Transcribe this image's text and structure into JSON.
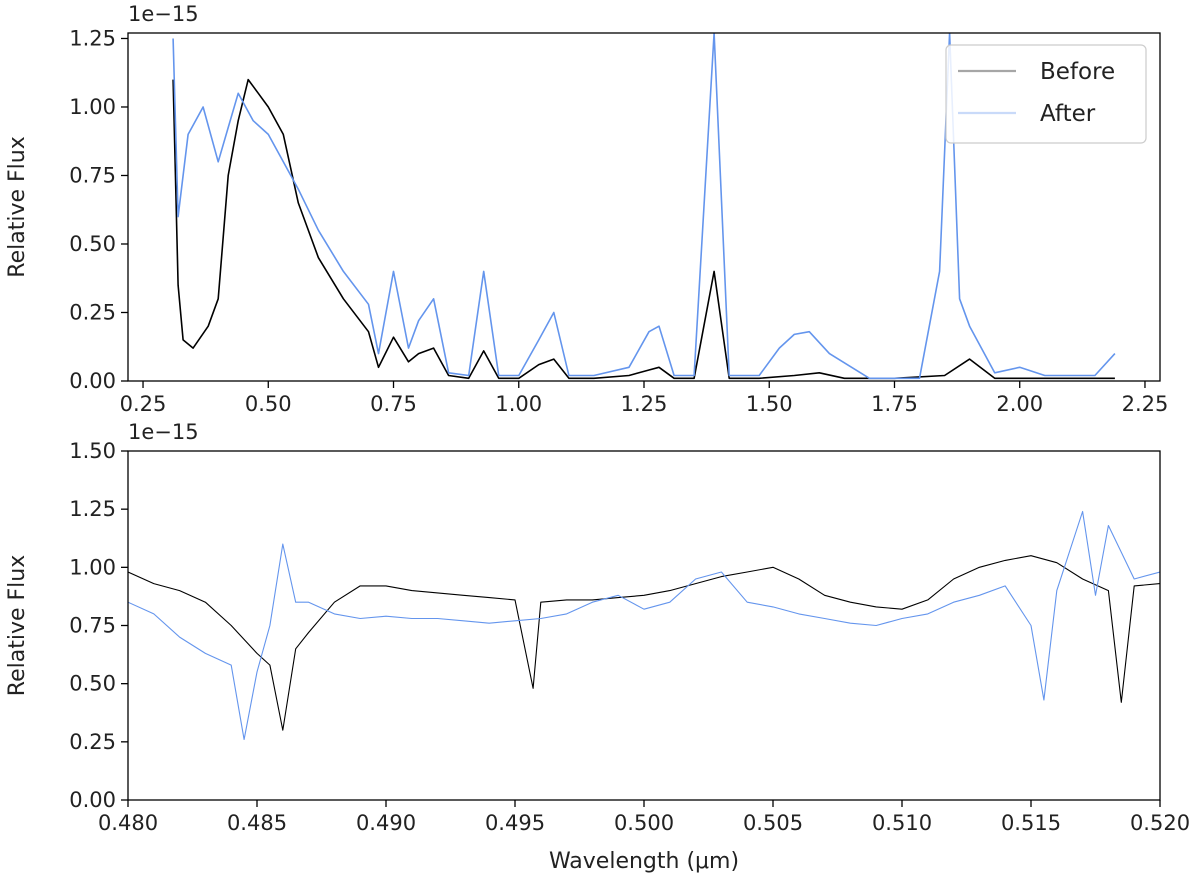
{
  "chart_data": [
    {
      "type": "line",
      "ylabel": "Relative Flux",
      "xlabel": "",
      "y_offset_label": "1e−15",
      "xlim": [
        0.22,
        2.28
      ],
      "ylim": [
        0.0,
        1.27
      ],
      "xticks": [
        "0.25",
        "0.50",
        "0.75",
        "1.00",
        "1.25",
        "1.50",
        "1.75",
        "2.00",
        "2.25"
      ],
      "xtick_values": [
        0.25,
        0.5,
        0.75,
        1.0,
        1.25,
        1.5,
        1.75,
        2.0,
        2.25
      ],
      "yticks": [
        "0.00",
        "0.25",
        "0.50",
        "0.75",
        "1.00",
        "1.25"
      ],
      "ytick_values": [
        0.0,
        0.25,
        0.5,
        0.75,
        1.0,
        1.25
      ],
      "legend": {
        "placement": "top-right",
        "entries": [
          "Before",
          "After"
        ]
      },
      "series": [
        {
          "name": "Before",
          "color": "#000000",
          "x": [
            0.31,
            0.32,
            0.33,
            0.35,
            0.38,
            0.4,
            0.42,
            0.44,
            0.46,
            0.48,
            0.5,
            0.53,
            0.56,
            0.6,
            0.65,
            0.7,
            0.72,
            0.75,
            0.78,
            0.8,
            0.83,
            0.86,
            0.9,
            0.93,
            0.96,
            1.0,
            1.04,
            1.07,
            1.1,
            1.15,
            1.22,
            1.26,
            1.28,
            1.31,
            1.35,
            1.39,
            1.42,
            1.48,
            1.55,
            1.6,
            1.65,
            1.75,
            1.85,
            1.9,
            1.95,
            2.05,
            2.19
          ],
          "y": [
            1.1,
            0.35,
            0.15,
            0.12,
            0.2,
            0.3,
            0.75,
            0.95,
            1.1,
            1.05,
            1.0,
            0.9,
            0.65,
            0.45,
            0.3,
            0.18,
            0.05,
            0.16,
            0.07,
            0.1,
            0.12,
            0.02,
            0.01,
            0.11,
            0.01,
            0.01,
            0.06,
            0.08,
            0.01,
            0.01,
            0.02,
            0.04,
            0.05,
            0.01,
            0.01,
            0.4,
            0.01,
            0.01,
            0.02,
            0.03,
            0.01,
            0.01,
            0.02,
            0.08,
            0.01,
            0.01,
            0.01
          ]
        },
        {
          "name": "After",
          "color": "#6495ed",
          "x": [
            0.31,
            0.32,
            0.34,
            0.37,
            0.4,
            0.44,
            0.47,
            0.5,
            0.53,
            0.56,
            0.6,
            0.65,
            0.7,
            0.72,
            0.75,
            0.78,
            0.8,
            0.83,
            0.86,
            0.9,
            0.93,
            0.96,
            1.0,
            1.04,
            1.07,
            1.1,
            1.15,
            1.22,
            1.26,
            1.28,
            1.31,
            1.35,
            1.39,
            1.42,
            1.48,
            1.52,
            1.55,
            1.58,
            1.62,
            1.7,
            1.8,
            1.84,
            1.86,
            1.88,
            1.9,
            1.95,
            2.0,
            2.05,
            2.1,
            2.15,
            2.19
          ],
          "y": [
            1.25,
            0.6,
            0.9,
            1.0,
            0.8,
            1.05,
            0.95,
            0.9,
            0.8,
            0.7,
            0.55,
            0.4,
            0.28,
            0.1,
            0.4,
            0.12,
            0.22,
            0.3,
            0.03,
            0.02,
            0.4,
            0.02,
            0.02,
            0.15,
            0.25,
            0.02,
            0.02,
            0.05,
            0.18,
            0.2,
            0.02,
            0.02,
            1.27,
            0.02,
            0.02,
            0.12,
            0.17,
            0.18,
            0.1,
            0.01,
            0.01,
            0.4,
            1.27,
            0.3,
            0.2,
            0.03,
            0.05,
            0.02,
            0.02,
            0.02,
            0.1
          ]
        }
      ]
    },
    {
      "type": "line",
      "ylabel": "Relative Flux",
      "xlabel": "Wavelength (μm)",
      "y_offset_label": "1e−15",
      "xlim": [
        0.48,
        0.52
      ],
      "ylim": [
        0.0,
        1.5
      ],
      "xticks": [
        "0.480",
        "0.485",
        "0.490",
        "0.495",
        "0.500",
        "0.505",
        "0.510",
        "0.515",
        "0.520"
      ],
      "xtick_values": [
        0.48,
        0.485,
        0.49,
        0.495,
        0.5,
        0.505,
        0.51,
        0.515,
        0.52
      ],
      "yticks": [
        "0.00",
        "0.25",
        "0.50",
        "0.75",
        "1.00",
        "1.25",
        "1.50"
      ],
      "ytick_values": [
        0.0,
        0.25,
        0.5,
        0.75,
        1.0,
        1.25,
        1.5
      ],
      "series": [
        {
          "name": "Before",
          "color": "#000000",
          "x": [
            0.48,
            0.481,
            0.482,
            0.483,
            0.484,
            0.485,
            0.4855,
            0.486,
            0.4865,
            0.487,
            0.488,
            0.489,
            0.49,
            0.491,
            0.492,
            0.493,
            0.494,
            0.495,
            0.4957,
            0.496,
            0.497,
            0.498,
            0.499,
            0.5,
            0.501,
            0.502,
            0.503,
            0.504,
            0.505,
            0.506,
            0.507,
            0.508,
            0.509,
            0.51,
            0.511,
            0.512,
            0.513,
            0.514,
            0.515,
            0.516,
            0.517,
            0.518,
            0.5185,
            0.519,
            0.52
          ],
          "y": [
            0.98,
            0.93,
            0.9,
            0.85,
            0.75,
            0.63,
            0.58,
            0.3,
            0.65,
            0.72,
            0.85,
            0.92,
            0.92,
            0.9,
            0.89,
            0.88,
            0.87,
            0.86,
            0.48,
            0.85,
            0.86,
            0.86,
            0.87,
            0.88,
            0.9,
            0.93,
            0.96,
            0.98,
            1.0,
            0.95,
            0.88,
            0.85,
            0.83,
            0.82,
            0.86,
            0.95,
            1.0,
            1.03,
            1.05,
            1.02,
            0.95,
            0.9,
            0.42,
            0.92,
            0.93
          ]
        },
        {
          "name": "After",
          "color": "#6495ed",
          "x": [
            0.48,
            0.481,
            0.482,
            0.483,
            0.484,
            0.4845,
            0.485,
            0.4855,
            0.486,
            0.4865,
            0.487,
            0.488,
            0.489,
            0.49,
            0.491,
            0.492,
            0.493,
            0.494,
            0.495,
            0.496,
            0.497,
            0.498,
            0.499,
            0.5,
            0.501,
            0.502,
            0.503,
            0.504,
            0.505,
            0.506,
            0.507,
            0.508,
            0.509,
            0.51,
            0.511,
            0.512,
            0.513,
            0.514,
            0.515,
            0.5155,
            0.516,
            0.517,
            0.5175,
            0.518,
            0.519,
            0.52
          ],
          "y": [
            0.85,
            0.8,
            0.7,
            0.63,
            0.58,
            0.26,
            0.55,
            0.75,
            1.1,
            0.85,
            0.85,
            0.8,
            0.78,
            0.79,
            0.78,
            0.78,
            0.77,
            0.76,
            0.77,
            0.78,
            0.8,
            0.85,
            0.88,
            0.82,
            0.85,
            0.95,
            0.98,
            0.85,
            0.83,
            0.8,
            0.78,
            0.76,
            0.75,
            0.78,
            0.8,
            0.85,
            0.88,
            0.92,
            0.75,
            0.43,
            0.9,
            1.24,
            0.88,
            1.18,
            0.95,
            0.98
          ]
        }
      ]
    }
  ]
}
